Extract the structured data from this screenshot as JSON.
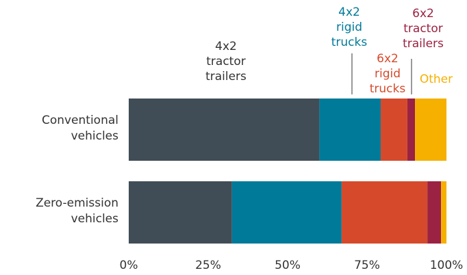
{
  "chart_data": {
    "type": "stacked-bar-horizontal",
    "categories": [
      "Conventional vehicles",
      "Zero-emission vehicles"
    ],
    "series": [
      {
        "name": "4x2 tractor trailers",
        "color": "#414d56",
        "values": [
          60,
          32.5
        ]
      },
      {
        "name": "4x2 rigid trucks",
        "color": "#007a99",
        "values": [
          19.3,
          34.5
        ]
      },
      {
        "name": "6x2 rigid trucks",
        "color": "#d64a2b",
        "values": [
          8.4,
          27
        ]
      },
      {
        "name": "6x2 tractor trailers",
        "color": "#9b2242",
        "values": [
          2.4,
          4.3
        ]
      },
      {
        "name": "Other",
        "color": "#f5b000",
        "values": [
          9.9,
          1.7
        ]
      }
    ],
    "xlim": [
      0,
      100
    ],
    "xticks": [
      {
        "value": 0,
        "label": "0%"
      },
      {
        "value": 25,
        "label": "25%"
      },
      {
        "value": 50,
        "label": "50%"
      },
      {
        "value": 75,
        "label": "75%"
      },
      {
        "value": 100,
        "label": "100%"
      }
    ]
  }
}
